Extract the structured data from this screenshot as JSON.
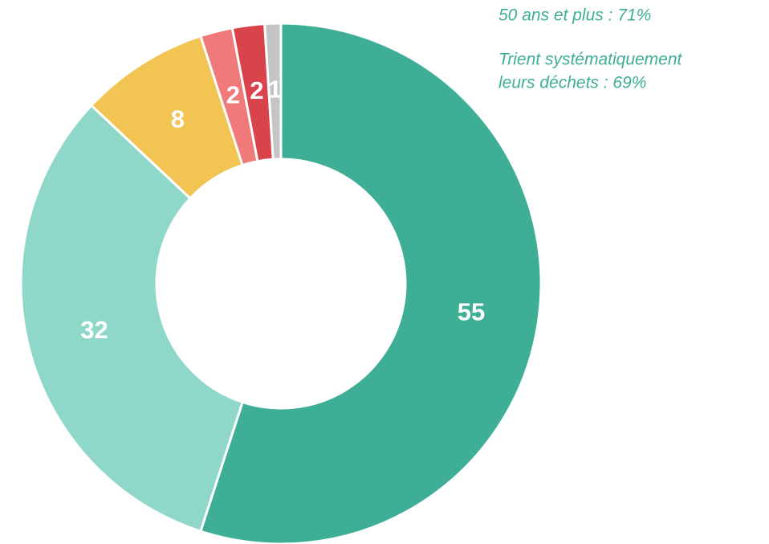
{
  "chart_data": {
    "type": "donut",
    "values": [
      55,
      32,
      8,
      2,
      2,
      1
    ],
    "colors": [
      "#3fae96",
      "#8fd7c8",
      "#f2c453",
      "#f07a7a",
      "#d9434b",
      "#c4c4c4"
    ],
    "annotations": [
      "50 ans et plus : 71%",
      "Trient systématiquement",
      "leurs déchets : 69%"
    ]
  }
}
